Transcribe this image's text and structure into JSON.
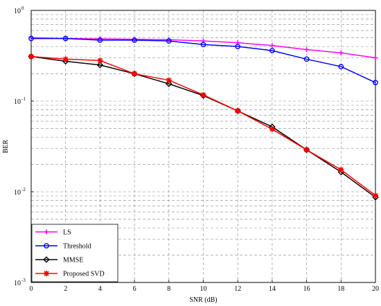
{
  "chart_data": {
    "type": "line",
    "xlabel": "SNR (dB)",
    "ylabel": "BER",
    "x": [
      0,
      2,
      4,
      6,
      8,
      10,
      12,
      14,
      16,
      18,
      20
    ],
    "xlim": [
      0,
      20
    ],
    "ylim": [
      0.001,
      1
    ],
    "y_scale": "log",
    "grid": true,
    "legend_position": "bottom-left",
    "x_ticks": [
      "0",
      "2",
      "4",
      "6",
      "8",
      "10",
      "12",
      "14",
      "16",
      "18",
      "20"
    ],
    "y_ticks": [
      {
        "base": "10",
        "exp": "0"
      },
      {
        "base": "10",
        "exp": "-1"
      },
      {
        "base": "10",
        "exp": "-2"
      },
      {
        "base": "10",
        "exp": "-3"
      }
    ],
    "series": [
      {
        "name": "LS",
        "color": "#ff00ff",
        "marker": "plus",
        "values": [
          0.5,
          0.49,
          0.485,
          0.48,
          0.475,
          0.46,
          0.44,
          0.41,
          0.37,
          0.34,
          0.3
        ]
      },
      {
        "name": "Threshold",
        "color": "#0000ff",
        "marker": "circle",
        "values": [
          0.49,
          0.49,
          0.47,
          0.47,
          0.46,
          0.42,
          0.4,
          0.36,
          0.29,
          0.24,
          0.16
        ]
      },
      {
        "name": "MMSE",
        "color": "#000000",
        "marker": "diamond",
        "values": [
          0.31,
          0.275,
          0.25,
          0.2,
          0.155,
          0.115,
          0.078,
          0.052,
          0.029,
          0.0165,
          0.0087
        ]
      },
      {
        "name": "Proposed SVD",
        "color": "#ff0000",
        "marker": "star",
        "values": [
          0.31,
          0.29,
          0.28,
          0.2,
          0.17,
          0.117,
          0.078,
          0.049,
          0.029,
          0.0175,
          0.0091
        ]
      }
    ]
  }
}
